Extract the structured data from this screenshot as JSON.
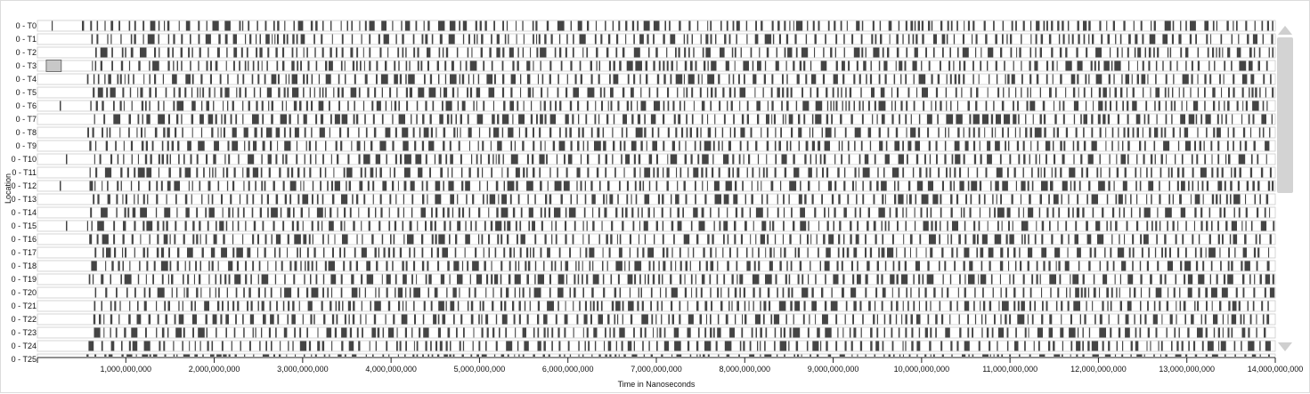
{
  "chart_data": {
    "type": "timeline",
    "title": "",
    "ylabel": "Location",
    "xlabel": "Time in Nanoseconds",
    "xlim": [
      0,
      14000000000
    ],
    "x_ticks": [
      {
        "value": 1000000000,
        "label": "1,000,000,000"
      },
      {
        "value": 2000000000,
        "label": "2,000,000,000"
      },
      {
        "value": 3000000000,
        "label": "3,000,000,000"
      },
      {
        "value": 4000000000,
        "label": "4,000,000,000"
      },
      {
        "value": 5000000000,
        "label": "5,000,000,000"
      },
      {
        "value": 6000000000,
        "label": "6,000,000,000"
      },
      {
        "value": 7000000000,
        "label": "7,000,000,000"
      },
      {
        "value": 8000000000,
        "label": "8,000,000,000"
      },
      {
        "value": 9000000000,
        "label": "9,000,000,000"
      },
      {
        "value": 10000000000,
        "label": "10,000,000,000"
      },
      {
        "value": 11000000000,
        "label": "11,000,000,000"
      },
      {
        "value": 12000000000,
        "label": "12,000,000,000"
      },
      {
        "value": 13000000000,
        "label": "13,000,000,000"
      },
      {
        "value": 14000000000,
        "label": "14,000,000,000"
      }
    ],
    "locations": [
      "0 - T0",
      "0 - T1",
      "0 - T2",
      "0 - T3",
      "0 - T4",
      "0 - T5",
      "0 - T6",
      "0 - T7",
      "0 - T8",
      "0 - T9",
      "0 - T10",
      "0 - T11",
      "0 - T12",
      "0 - T13",
      "0 - T14",
      "0 - T15",
      "0 - T16",
      "0 - T17",
      "0 - T18",
      "0 - T19",
      "0 - T20",
      "0 - T21",
      "0 - T22",
      "0 - T23",
      "0 - T24",
      "0 - T25"
    ],
    "highlighted_event": {
      "location": "0 - T3",
      "start": 90000000,
      "end": 260000000
    },
    "colors": {
      "event": "#444444",
      "highlight": "#c8c8c8",
      "lane_border": "#cccccc",
      "scrollbar": "#d3d3d3"
    }
  }
}
